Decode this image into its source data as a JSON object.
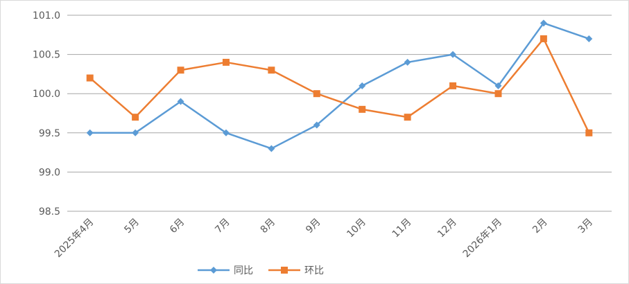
{
  "chart_data": {
    "type": "line",
    "categories": [
      "2025年4月",
      "5月",
      "6月",
      "7月",
      "8月",
      "9月",
      "10月",
      "11月",
      "12月",
      "2026年1月",
      "2月",
      "3月"
    ],
    "series": [
      {
        "name": "同比",
        "color": "#5b9bd5",
        "marker": "diamond",
        "values": [
          99.5,
          99.5,
          99.9,
          99.5,
          99.3,
          99.6,
          100.1,
          100.4,
          100.5,
          100.1,
          100.9,
          100.7
        ]
      },
      {
        "name": "环比",
        "color": "#ed7d31",
        "marker": "square",
        "values": [
          100.2,
          99.7,
          100.3,
          100.4,
          100.3,
          100.0,
          99.8,
          99.7,
          100.1,
          100.0,
          100.7,
          99.5
        ]
      }
    ],
    "yticks": [
      "98.5",
      "99.0",
      "99.5",
      "100.0",
      "100.5",
      "101.0"
    ],
    "ylim": [
      98.5,
      101.0
    ],
    "grid": true,
    "legend": "bottom"
  }
}
